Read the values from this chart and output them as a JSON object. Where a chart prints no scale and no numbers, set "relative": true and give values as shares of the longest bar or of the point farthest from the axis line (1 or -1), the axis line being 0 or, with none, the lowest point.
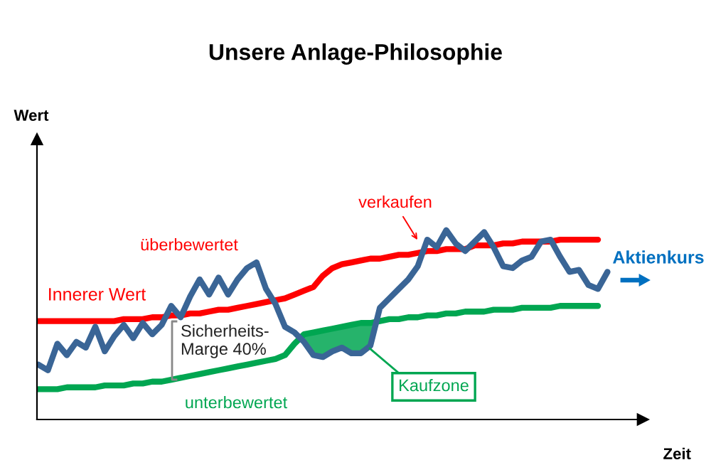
{
  "chart_data": {
    "type": "line",
    "title": "Unsere Anlage-Philosophie",
    "xlabel": "Zeit",
    "relative": true,
    "legend": false,
    "grid": false,
    "categories": [
      null,
      null,
      null,
      null,
      null,
      null,
      null,
      null,
      null,
      null,
      null,
      null,
      null,
      null,
      null,
      null,
      null,
      null,
      null,
      null,
      null,
      null,
      null,
      null,
      null,
      null,
      null,
      null,
      null,
      null,
      null,
      null,
      null,
      null,
      null,
      null,
      null,
      null,
      null,
      null,
      null,
      null,
      null,
      null,
      null,
      null,
      null,
      null,
      null,
      null,
      null,
      null,
      null,
      null,
      null,
      null,
      null,
      null,
      null,
      null,
      null
    ],
    "series": [
      {
        "name": "Innerer Wert",
        "color": "#ff0000",
        "values": [
          0.52,
          0.52,
          0.52,
          0.52,
          0.52,
          0.52,
          0.52,
          0.52,
          0.52,
          0.53,
          0.53,
          0.53,
          0.54,
          0.54,
          0.55,
          0.55,
          0.56,
          0.56,
          0.57,
          0.58,
          0.58,
          0.59,
          0.6,
          0.61,
          0.62,
          0.63,
          0.64,
          0.66,
          0.68,
          0.7,
          0.76,
          0.8,
          0.82,
          0.83,
          0.84,
          0.85,
          0.85,
          0.86,
          0.87,
          0.87,
          0.88,
          0.89,
          0.89,
          0.9,
          0.9,
          0.9,
          0.92,
          0.92,
          0.92,
          0.93,
          0.93,
          0.94,
          0.94,
          0.94,
          0.94,
          0.95,
          0.95,
          0.95,
          0.95,
          0.95,
          null
        ]
      },
      {
        "color": "#00a651",
        "values": [
          0.16,
          0.16,
          0.16,
          0.17,
          0.17,
          0.17,
          0.17,
          0.18,
          0.18,
          0.18,
          0.19,
          0.19,
          0.2,
          0.2,
          0.21,
          0.22,
          0.23,
          0.24,
          0.25,
          0.26,
          0.27,
          0.28,
          0.29,
          0.3,
          0.31,
          0.32,
          0.34,
          0.4,
          0.45,
          0.46,
          0.47,
          0.48,
          0.49,
          0.5,
          0.51,
          0.51,
          0.52,
          0.53,
          0.53,
          0.54,
          0.54,
          0.55,
          0.55,
          0.56,
          0.56,
          0.57,
          0.57,
          0.57,
          0.58,
          0.58,
          0.58,
          0.59,
          0.59,
          0.59,
          0.59,
          0.6,
          0.6,
          0.6,
          0.6,
          0.6,
          null
        ]
      },
      {
        "name": "Aktienkurs",
        "color": "#3a6596",
        "values": [
          0.29,
          0.26,
          0.4,
          0.34,
          0.41,
          0.38,
          0.49,
          0.36,
          0.44,
          0.5,
          0.43,
          0.51,
          0.45,
          0.5,
          0.6,
          0.54,
          0.65,
          0.74,
          0.66,
          0.75,
          0.66,
          0.74,
          0.8,
          0.83,
          0.69,
          0.61,
          0.49,
          0.46,
          0.41,
          0.34,
          0.33,
          0.36,
          0.38,
          0.35,
          0.35,
          0.39,
          0.59,
          0.64,
          0.69,
          0.74,
          0.81,
          0.95,
          0.91,
          1.0,
          0.93,
          0.89,
          0.94,
          0.99,
          0.91,
          0.81,
          0.8,
          0.84,
          0.86,
          0.94,
          0.95,
          0.86,
          0.78,
          0.79,
          0.71,
          0.69,
          0.78
        ]
      }
    ],
    "annotations": [
      "überbewertet",
      "Sicherheits-\nMarge 40%",
      "verkaufen",
      "Kaufzone",
      "unterbewertet",
      "Wert"
    ]
  }
}
